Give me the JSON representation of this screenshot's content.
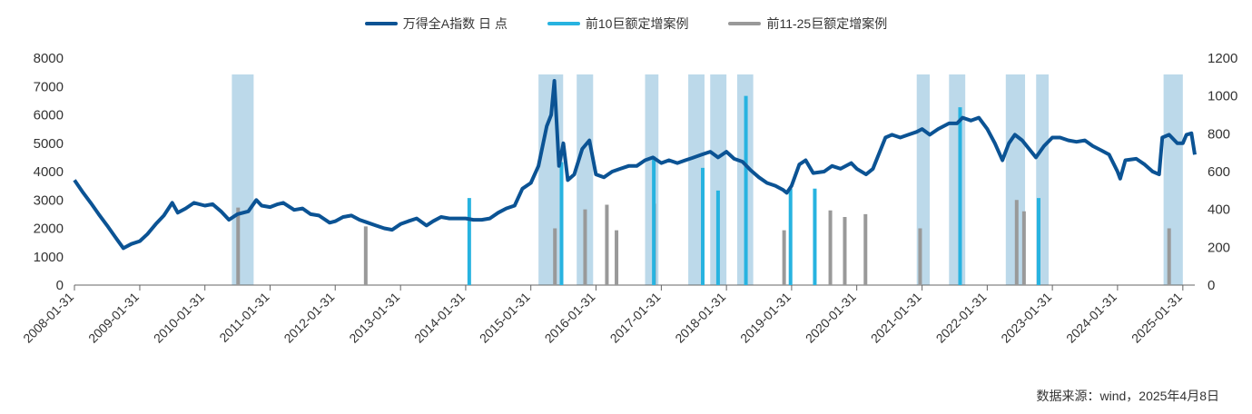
{
  "legend": [
    {
      "label": "万得全A指数 日 点",
      "color": "#0b5394"
    },
    {
      "label": "前10巨额定增案例",
      "color": "#27b3e0"
    },
    {
      "label": "前11-25巨额定增案例",
      "color": "#999999"
    }
  ],
  "source": "数据来源：wind，2025年4月8日",
  "colors": {
    "index": "#0b5394",
    "top10": "#27b3e0",
    "rank11_25": "#999999",
    "shade": "#bcd9ea",
    "axis": "#666666"
  },
  "chart_data": {
    "type": "line",
    "x_axis": {
      "type": "date",
      "range": [
        "2008-01-31",
        "2025-04-08"
      ],
      "ticks": [
        "2008-01-31",
        "2009-01-31",
        "2010-01-31",
        "2011-01-31",
        "2012-01-31",
        "2013-01-31",
        "2014-01-31",
        "2015-01-31",
        "2016-01-31",
        "2017-01-31",
        "2018-01-31",
        "2019-01-31",
        "2020-01-31",
        "2021-01-31",
        "2022-01-31",
        "2023-01-31",
        "2024-01-31",
        "2025-01-31"
      ]
    },
    "y_left": {
      "range": [
        0,
        8000
      ],
      "ticks": [
        0,
        1000,
        2000,
        3000,
        4000,
        5000,
        6000,
        7000,
        8000
      ]
    },
    "y_right": {
      "range": [
        0,
        1200
      ],
      "ticks": [
        0,
        200,
        400,
        600,
        800,
        1000,
        1200
      ]
    },
    "series_index": {
      "name": "万得全A指数 日 点",
      "axis": "left",
      "points": [
        [
          "2008-01-31",
          3700
        ],
        [
          "2008-03-15",
          3300
        ],
        [
          "2008-05-01",
          2900
        ],
        [
          "2008-06-15",
          2500
        ],
        [
          "2008-08-01",
          2100
        ],
        [
          "2008-09-15",
          1700
        ],
        [
          "2008-10-31",
          1300
        ],
        [
          "2008-12-15",
          1450
        ],
        [
          "2009-01-31",
          1550
        ],
        [
          "2009-03-15",
          1800
        ],
        [
          "2009-05-01",
          2150
        ],
        [
          "2009-06-15",
          2450
        ],
        [
          "2009-08-01",
          2900
        ],
        [
          "2009-09-01",
          2550
        ],
        [
          "2009-10-15",
          2700
        ],
        [
          "2009-12-01",
          2900
        ],
        [
          "2010-01-31",
          2800
        ],
        [
          "2010-03-15",
          2850
        ],
        [
          "2010-05-01",
          2600
        ],
        [
          "2010-06-15",
          2300
        ],
        [
          "2010-08-01",
          2500
        ],
        [
          "2010-10-01",
          2600
        ],
        [
          "2010-11-15",
          3000
        ],
        [
          "2010-12-15",
          2800
        ],
        [
          "2011-01-31",
          2750
        ],
        [
          "2011-03-15",
          2850
        ],
        [
          "2011-04-15",
          2900
        ],
        [
          "2011-06-15",
          2650
        ],
        [
          "2011-08-01",
          2700
        ],
        [
          "2011-09-15",
          2500
        ],
        [
          "2011-11-01",
          2450
        ],
        [
          "2011-12-31",
          2200
        ],
        [
          "2012-01-31",
          2250
        ],
        [
          "2012-03-15",
          2400
        ],
        [
          "2012-05-01",
          2450
        ],
        [
          "2012-06-15",
          2300
        ],
        [
          "2012-08-01",
          2200
        ],
        [
          "2012-09-15",
          2100
        ],
        [
          "2012-11-01",
          2000
        ],
        [
          "2012-12-15",
          1950
        ],
        [
          "2013-01-31",
          2150
        ],
        [
          "2013-03-15",
          2250
        ],
        [
          "2013-05-01",
          2350
        ],
        [
          "2013-06-25",
          2100
        ],
        [
          "2013-08-01",
          2250
        ],
        [
          "2013-09-15",
          2400
        ],
        [
          "2013-11-01",
          2350
        ],
        [
          "2013-12-15",
          2350
        ],
        [
          "2014-01-31",
          2350
        ],
        [
          "2014-03-15",
          2300
        ],
        [
          "2014-05-01",
          2300
        ],
        [
          "2014-06-15",
          2350
        ],
        [
          "2014-08-01",
          2550
        ],
        [
          "2014-09-15",
          2700
        ],
        [
          "2014-11-01",
          2800
        ],
        [
          "2014-12-15",
          3400
        ],
        [
          "2015-01-31",
          3600
        ],
        [
          "2015-03-15",
          4200
        ],
        [
          "2015-04-30",
          5600
        ],
        [
          "2015-05-25",
          6000
        ],
        [
          "2015-06-12",
          7200
        ],
        [
          "2015-07-08",
          4200
        ],
        [
          "2015-08-01",
          5000
        ],
        [
          "2015-08-26",
          3700
        ],
        [
          "2015-10-01",
          3900
        ],
        [
          "2015-11-15",
          4800
        ],
        [
          "2015-12-25",
          5100
        ],
        [
          "2016-01-31",
          3900
        ],
        [
          "2016-03-15",
          3800
        ],
        [
          "2016-05-01",
          4000
        ],
        [
          "2016-06-15",
          4100
        ],
        [
          "2016-08-01",
          4200
        ],
        [
          "2016-09-15",
          4200
        ],
        [
          "2016-11-01",
          4400
        ],
        [
          "2016-12-15",
          4500
        ],
        [
          "2017-01-31",
          4300
        ],
        [
          "2017-03-15",
          4400
        ],
        [
          "2017-05-01",
          4300
        ],
        [
          "2017-06-15",
          4400
        ],
        [
          "2017-08-01",
          4500
        ],
        [
          "2017-09-15",
          4600
        ],
        [
          "2017-11-01",
          4700
        ],
        [
          "2017-12-15",
          4500
        ],
        [
          "2018-01-31",
          4700
        ],
        [
          "2018-03-15",
          4450
        ],
        [
          "2018-05-01",
          4350
        ],
        [
          "2018-06-15",
          4050
        ],
        [
          "2018-08-01",
          3800
        ],
        [
          "2018-09-15",
          3600
        ],
        [
          "2018-11-01",
          3500
        ],
        [
          "2018-12-15",
          3350
        ],
        [
          "2019-01-04",
          3250
        ],
        [
          "2019-01-31",
          3500
        ],
        [
          "2019-03-15",
          4250
        ],
        [
          "2019-04-20",
          4400
        ],
        [
          "2019-06-01",
          3950
        ],
        [
          "2019-08-01",
          4000
        ],
        [
          "2019-09-15",
          4200
        ],
        [
          "2019-11-01",
          4100
        ],
        [
          "2019-12-31",
          4300
        ],
        [
          "2020-01-31",
          4100
        ],
        [
          "2020-03-23",
          3900
        ],
        [
          "2020-05-01",
          4100
        ],
        [
          "2020-07-10",
          5200
        ],
        [
          "2020-08-15",
          5300
        ],
        [
          "2020-10-01",
          5200
        ],
        [
          "2020-11-15",
          5300
        ],
        [
          "2020-12-31",
          5400
        ],
        [
          "2021-01-31",
          5500
        ],
        [
          "2021-03-15",
          5300
        ],
        [
          "2021-05-01",
          5500
        ],
        [
          "2021-07-01",
          5700
        ],
        [
          "2021-08-15",
          5700
        ],
        [
          "2021-09-15",
          5900
        ],
        [
          "2021-11-01",
          5800
        ],
        [
          "2021-12-15",
          5900
        ],
        [
          "2022-01-31",
          5500
        ],
        [
          "2022-03-15",
          5000
        ],
        [
          "2022-04-26",
          4400
        ],
        [
          "2022-06-01",
          5000
        ],
        [
          "2022-07-05",
          5300
        ],
        [
          "2022-08-15",
          5100
        ],
        [
          "2022-10-31",
          4500
        ],
        [
          "2022-12-15",
          4900
        ],
        [
          "2023-01-31",
          5200
        ],
        [
          "2023-03-15",
          5200
        ],
        [
          "2023-05-01",
          5100
        ],
        [
          "2023-06-15",
          5050
        ],
        [
          "2023-08-01",
          5100
        ],
        [
          "2023-09-15",
          4900
        ],
        [
          "2023-11-01",
          4750
        ],
        [
          "2023-12-15",
          4600
        ],
        [
          "2024-01-31",
          4000
        ],
        [
          "2024-02-15",
          3750
        ],
        [
          "2024-03-15",
          4400
        ],
        [
          "2024-05-15",
          4450
        ],
        [
          "2024-07-01",
          4250
        ],
        [
          "2024-08-15",
          4000
        ],
        [
          "2024-09-20",
          3900
        ],
        [
          "2024-10-08",
          5200
        ],
        [
          "2024-11-15",
          5300
        ],
        [
          "2024-12-31",
          5000
        ],
        [
          "2025-01-31",
          5000
        ],
        [
          "2025-02-20",
          5300
        ],
        [
          "2025-03-20",
          5350
        ],
        [
          "2025-04-08",
          4600
        ]
      ]
    },
    "series_top10": {
      "name": "前10巨额定增案例",
      "axis": "right",
      "points": [
        [
          "2014-02-20",
          460
        ],
        [
          "2015-07-22",
          650
        ],
        [
          "2016-12-20",
          680
        ],
        [
          "2017-09-20",
          620
        ],
        [
          "2017-12-15",
          500
        ],
        [
          "2018-05-20",
          1000
        ],
        [
          "2019-01-25",
          510
        ],
        [
          "2019-06-10",
          510
        ],
        [
          "2021-09-01",
          940
        ],
        [
          "2022-11-15",
          460
        ]
      ]
    },
    "series_rank11_25": {
      "name": "前11-25巨额定增案例",
      "axis": "right",
      "points": [
        [
          "2010-08-05",
          410
        ],
        [
          "2012-07-20",
          310
        ],
        [
          "2015-06-15",
          300
        ],
        [
          "2015-12-01",
          400
        ],
        [
          "2016-04-01",
          425
        ],
        [
          "2016-05-25",
          290
        ],
        [
          "2016-12-22",
          430
        ],
        [
          "2018-12-20",
          290
        ],
        [
          "2019-09-05",
          395
        ],
        [
          "2019-11-25",
          360
        ],
        [
          "2020-03-20",
          375
        ],
        [
          "2021-01-20",
          300
        ],
        [
          "2022-07-15",
          450
        ],
        [
          "2022-08-25",
          390
        ],
        [
          "2024-11-15",
          300
        ]
      ]
    },
    "shaded_periods": [
      [
        "2010-07-01",
        "2010-10-31"
      ],
      [
        "2015-03-15",
        "2015-07-31"
      ],
      [
        "2015-10-15",
        "2016-01-15"
      ],
      [
        "2016-11-01",
        "2017-01-15"
      ],
      [
        "2017-07-01",
        "2017-09-30"
      ],
      [
        "2017-11-01",
        "2018-01-31"
      ],
      [
        "2018-04-01",
        "2018-06-30"
      ],
      [
        "2021-01-01",
        "2021-03-15"
      ],
      [
        "2021-07-01",
        "2021-09-30"
      ],
      [
        "2022-05-15",
        "2022-08-31"
      ],
      [
        "2022-11-01",
        "2023-01-10"
      ],
      [
        "2024-10-15",
        "2025-01-31"
      ]
    ]
  }
}
